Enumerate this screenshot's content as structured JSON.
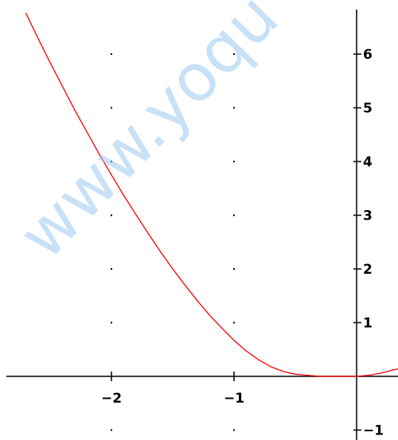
{
  "watermark": {
    "text": "www.yoqu"
  },
  "chart_data": {
    "type": "line",
    "title": "",
    "xlabel": "",
    "ylabel": "",
    "xlim": [
      -2.85,
      0.35
    ],
    "ylim": [
      -1.2,
      6.9
    ],
    "grid": "dots",
    "x_ticks": [
      {
        "value": -2,
        "label": "−2"
      },
      {
        "value": -1,
        "label": "−1"
      }
    ],
    "y_ticks": [
      {
        "value": 6,
        "label": "6"
      },
      {
        "value": 5,
        "label": "5"
      },
      {
        "value": 4,
        "label": "4"
      },
      {
        "value": 3,
        "label": "3"
      },
      {
        "value": 2,
        "label": "2"
      },
      {
        "value": 1,
        "label": "1"
      },
      {
        "value": -1,
        "label": "−1"
      }
    ],
    "series": [
      {
        "color": "#ff0000",
        "x": [
          -2.7,
          -2.6,
          -2.5,
          -2.4,
          -2.3,
          -2.2,
          -2.1,
          -2.0,
          -1.9,
          -1.8,
          -1.7,
          -1.6,
          -1.5,
          -1.4,
          -1.3,
          -1.2,
          -1.1,
          -1.0,
          -0.9,
          -0.8,
          -0.7,
          -0.6,
          -0.5,
          -0.4,
          -0.3,
          -0.2,
          -0.1,
          0.0,
          0.1,
          0.2,
          0.3,
          0.34
        ],
        "y": [
          6.77,
          6.3,
          5.84,
          5.4,
          4.96,
          4.55,
          4.14,
          3.75,
          3.37,
          3.01,
          2.66,
          2.32,
          2.0,
          1.7,
          1.41,
          1.14,
          0.9,
          0.67,
          0.47,
          0.31,
          0.18,
          0.09,
          0.04,
          0.02,
          0.0,
          0.0,
          0.0,
          0.0,
          0.02,
          0.06,
          0.12,
          0.14
        ]
      }
    ]
  }
}
